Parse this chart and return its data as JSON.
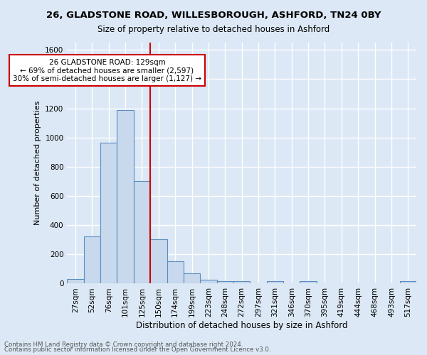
{
  "title1": "26, GLADSTONE ROAD, WILLESBOROUGH, ASHFORD, TN24 0BY",
  "title2": "Size of property relative to detached houses in Ashford",
  "xlabel": "Distribution of detached houses by size in Ashford",
  "ylabel": "Number of detached properties",
  "categories": [
    "27sqm",
    "52sqm",
    "76sqm",
    "101sqm",
    "125sqm",
    "150sqm",
    "174sqm",
    "199sqm",
    "223sqm",
    "248sqm",
    "272sqm",
    "297sqm",
    "321sqm",
    "346sqm",
    "370sqm",
    "395sqm",
    "419sqm",
    "444sqm",
    "468sqm",
    "493sqm",
    "517sqm"
  ],
  "values": [
    30,
    325,
    965,
    1190,
    700,
    305,
    155,
    70,
    25,
    15,
    15,
    0,
    15,
    0,
    15,
    0,
    0,
    0,
    0,
    0,
    15
  ],
  "bar_color": "#c9d9ed",
  "bar_edge_color": "#5b8dc0",
  "annotation_text": "26 GLADSTONE ROAD: 129sqm\n← 69% of detached houses are smaller (2,597)\n30% of semi-detached houses are larger (1,127) →",
  "annotation_box_color": "#ffffff",
  "annotation_box_edge": "#cc0000",
  "vline_color": "#cc0000",
  "vline_x": 4.5,
  "footer1": "Contains HM Land Registry data © Crown copyright and database right 2024.",
  "footer2": "Contains public sector information licensed under the Open Government Licence v3.0.",
  "ylim": [
    0,
    1650
  ],
  "yticks": [
    0,
    200,
    400,
    600,
    800,
    1000,
    1200,
    1400,
    1600
  ],
  "background_color": "#dce8f5",
  "grid_color": "#ffffff",
  "title1_fontsize": 9.5,
  "title2_fontsize": 8.5,
  "ylabel_fontsize": 8,
  "xlabel_fontsize": 8.5,
  "tick_fontsize": 7.5,
  "annotation_fontsize": 7.5,
  "footer_fontsize": 6.2,
  "footer_color": "#555555"
}
